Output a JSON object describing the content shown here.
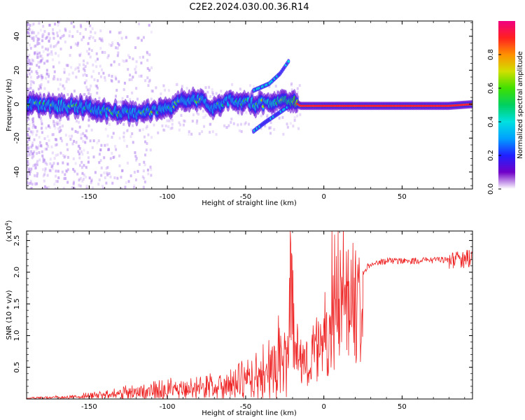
{
  "title": "C2E2.2024.030.00.36.R14",
  "colors": {
    "signal_line": "#ee2222",
    "background_speckle": "#b07ef0",
    "colormap": [
      "#ffffff",
      "#7000c8",
      "#2020ff",
      "#00a0ff",
      "#00e0e0",
      "#00d060",
      "#40e000",
      "#d0e000",
      "#ff9000",
      "#ff2020",
      "#f00080"
    ]
  },
  "chart_data": [
    {
      "type": "heatmap",
      "xlabel": "Height of straight line (km)",
      "ylabel": "Frequency (Hz)",
      "xlim": [
        -190,
        95
      ],
      "ylim": [
        -50,
        49
      ],
      "xticks": [
        -150,
        -100,
        -50,
        0,
        50
      ],
      "yticks": [
        -40,
        -20,
        0,
        20,
        40
      ],
      "colorbar": {
        "label": "Normalized spectral amplitude",
        "range": [
          0,
          1
        ],
        "ticks": [
          0.0,
          0.2,
          0.4,
          0.6,
          0.8
        ]
      },
      "ridge": [
        {
          "x": -190,
          "y": 0,
          "a": 0.35
        },
        {
          "x": -170,
          "y": -1,
          "a": 0.45
        },
        {
          "x": -150,
          "y": -2,
          "a": 0.4
        },
        {
          "x": -135,
          "y": -5,
          "a": 0.4
        },
        {
          "x": -120,
          "y": -5,
          "a": 0.4
        },
        {
          "x": -100,
          "y": -3,
          "a": 0.42
        },
        {
          "x": -90,
          "y": 2,
          "a": 0.4
        },
        {
          "x": -80,
          "y": 3,
          "a": 0.4
        },
        {
          "x": -70,
          "y": -3,
          "a": 0.4
        },
        {
          "x": -60,
          "y": 3,
          "a": 0.4
        },
        {
          "x": -45,
          "y": 0,
          "a": 0.45
        },
        {
          "x": -30,
          "y": 1,
          "a": 0.5
        },
        {
          "x": -20,
          "y": 2,
          "a": 0.6
        },
        {
          "x": -15,
          "y": -1,
          "a": 0.9
        },
        {
          "x": 0,
          "y": -1,
          "a": 0.95
        },
        {
          "x": 20,
          "y": -1,
          "a": 0.95
        },
        {
          "x": 40,
          "y": -1,
          "a": 0.95
        },
        {
          "x": 60,
          "y": -1,
          "a": 0.95
        },
        {
          "x": 80,
          "y": -1,
          "a": 0.95
        },
        {
          "x": 95,
          "y": 0,
          "a": 0.85
        }
      ],
      "branches": [
        {
          "name_hidden": "",
          "points": [
            {
              "x": -45,
              "y": 8
            },
            {
              "x": -35,
              "y": 12
            },
            {
              "x": -28,
              "y": 18
            },
            {
              "x": -22,
              "y": 26
            }
          ]
        },
        {
          "name_hidden": "",
          "points": [
            {
              "x": -45,
              "y": -16
            },
            {
              "x": -38,
              "y": -11
            },
            {
              "x": -30,
              "y": -6
            },
            {
              "x": -22,
              "y": -1
            }
          ]
        }
      ]
    },
    {
      "type": "line",
      "xlabel": "Height of straight line (km)",
      "ylabel": "SNR (10 * v/v)",
      "y_multiplier": "(x10",
      "y_multiplier_exp": "4",
      "y_multiplier_close": ")",
      "xlim": [
        -190,
        95
      ],
      "ylim": [
        0,
        2.65
      ],
      "xticks": [
        -150,
        -100,
        -50,
        0,
        50
      ],
      "yticks": [
        0.5,
        1.0,
        1.5,
        2.0,
        2.5
      ],
      "envelope": [
        {
          "x": -190,
          "y": 0.02
        },
        {
          "x": -160,
          "y": 0.05
        },
        {
          "x": -140,
          "y": 0.1
        },
        {
          "x": -120,
          "y": 0.18
        },
        {
          "x": -100,
          "y": 0.22
        },
        {
          "x": -80,
          "y": 0.28
        },
        {
          "x": -60,
          "y": 0.38
        },
        {
          "x": -45,
          "y": 0.5
        },
        {
          "x": -35,
          "y": 0.7
        },
        {
          "x": -25,
          "y": 1.1
        },
        {
          "x": -20,
          "y": 1.4
        },
        {
          "x": -15,
          "y": 0.7
        },
        {
          "x": -10,
          "y": 0.6
        },
        {
          "x": 0,
          "y": 1.0
        },
        {
          "x": 10,
          "y": 1.5
        },
        {
          "x": 20,
          "y": 1.8
        },
        {
          "x": 28,
          "y": 2.1
        },
        {
          "x": 40,
          "y": 2.18
        },
        {
          "x": 60,
          "y": 2.18
        },
        {
          "x": 80,
          "y": 2.2
        },
        {
          "x": 95,
          "y": 2.2
        }
      ],
      "peaks": [
        {
          "x": -21.5,
          "y": 2.65
        },
        {
          "x": -20.5,
          "y": 2.3
        },
        {
          "x": 9.0,
          "y": 2.65
        },
        {
          "x": 10.5,
          "y": 2.35
        },
        {
          "x": 6.0,
          "y": 1.95
        }
      ]
    }
  ]
}
